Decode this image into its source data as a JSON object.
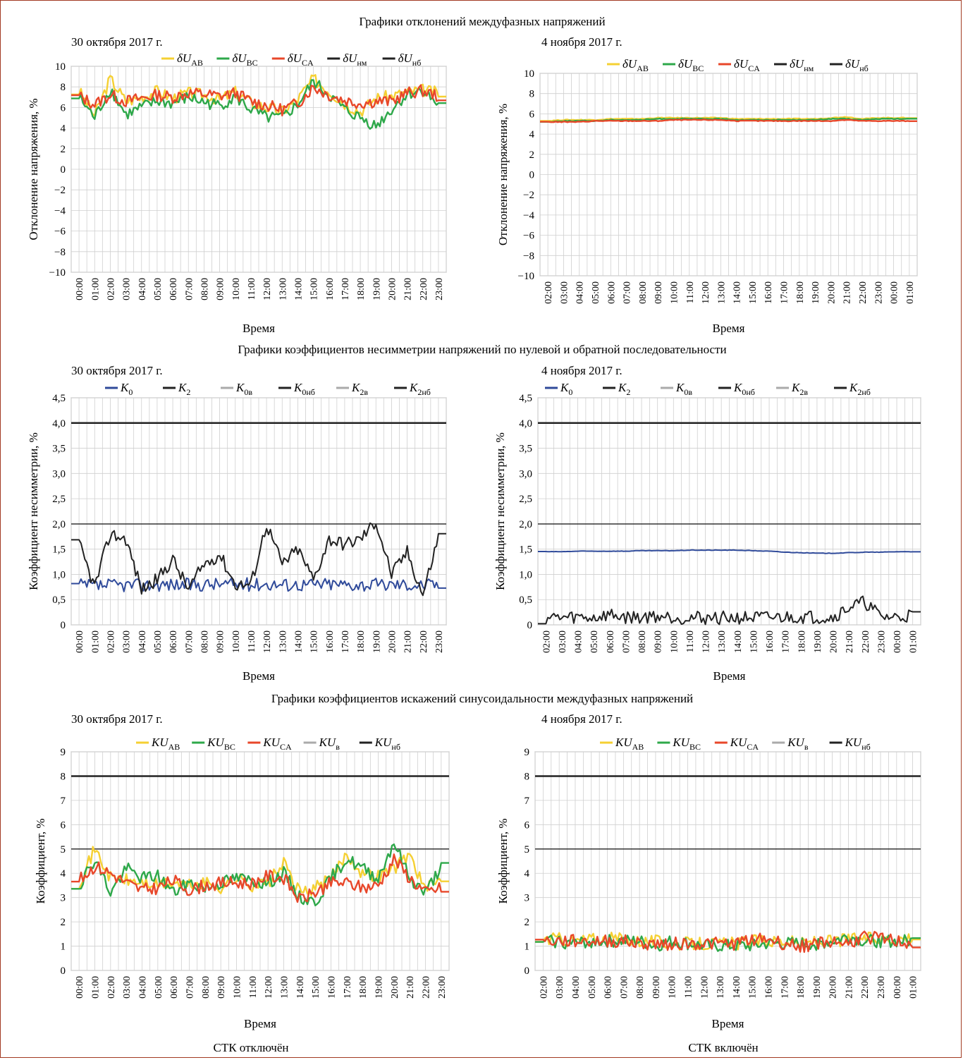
{
  "section_titles": [
    "Графики отклонений междуфазных напряжений",
    "Графики коэффициентов несимметрии напряжений по нулевой и обратной последовательности",
    "Графики коэффициентов искажений синусоидальности междуфазных напряжений"
  ],
  "footer": {
    "left": "СТК отключён",
    "right": "СТК включён"
  },
  "colors": {
    "border": "#a23a22",
    "yellow": "#f5d033",
    "green": "#2ea84a",
    "red": "#e8472a",
    "blue": "#2f4a9a",
    "black": "#222222",
    "gray": "#aaaaaa",
    "grid": "#cfcfcf"
  },
  "chart_data": [
    {
      "id": "dev_oct30",
      "type": "line",
      "date_label": "30 октября 2017 г.",
      "xlabel": "Время",
      "ylabel": "Отклонение напряжения, %",
      "ylim": [
        -10,
        10
      ],
      "yticks": [
        "10",
        "8",
        "6",
        "4",
        "2",
        "0",
        "−2",
        "−4",
        "−6",
        "−8",
        "−10"
      ],
      "categories": [
        "00:00",
        "01:00",
        "02:00",
        "03:00",
        "04:00",
        "05:00",
        "06:00",
        "07:00",
        "08:00",
        "09:00",
        "10:00",
        "11:00",
        "12:00",
        "13:00",
        "14:00",
        "15:00",
        "16:00",
        "17:00",
        "18:00",
        "19:00",
        "20:00",
        "21:00",
        "22:00",
        "23:00"
      ],
      "legend": [
        {
          "name": "δU_AB",
          "main": "δU",
          "sub": "AB",
          "color": "#f5d033"
        },
        {
          "name": "δU_BC",
          "main": "δU",
          "sub": "BC",
          "color": "#2ea84a"
        },
        {
          "name": "δU_CA",
          "main": "δU",
          "sub": "CA",
          "color": "#e8472a"
        },
        {
          "name": "δU_нм",
          "main": "δU",
          "sub": "нм",
          "color": "#222222"
        },
        {
          "name": "δU_нб",
          "main": "δU",
          "sub": "нб",
          "color": "#222222"
        }
      ],
      "series": [
        {
          "name": "δU_AB",
          "color": "#f5d033",
          "values": [
            7.6,
            5.2,
            8.8,
            6.6,
            7.0,
            7.6,
            6.9,
            7.4,
            7.2,
            6.8,
            7.5,
            6.5,
            6.0,
            5.6,
            6.8,
            8.8,
            7.6,
            6.4,
            5.6,
            6.9,
            7.1,
            7.5,
            7.7,
            7.4
          ]
        },
        {
          "name": "δU_BC",
          "color": "#2ea84a",
          "values": [
            7.0,
            5.0,
            7.8,
            5.3,
            6.0,
            6.6,
            6.4,
            7.0,
            6.5,
            6.2,
            7.0,
            5.8,
            5.0,
            5.0,
            6.3,
            8.5,
            7.2,
            5.8,
            5.0,
            4.2,
            5.8,
            7.3,
            7.7,
            6.2
          ]
        },
        {
          "name": "δU_CA",
          "color": "#e8472a",
          "values": [
            7.1,
            6.3,
            7.2,
            6.6,
            6.9,
            7.2,
            7.0,
            7.4,
            7.3,
            7.1,
            7.4,
            6.6,
            6.2,
            5.8,
            6.4,
            8.0,
            7.2,
            6.7,
            6.4,
            6.6,
            6.6,
            7.4,
            7.6,
            7.1
          ]
        }
      ]
    },
    {
      "id": "dev_nov4",
      "type": "line",
      "date_label": "4 ноября 2017 г.",
      "xlabel": "Время",
      "ylabel": "Отклонение напряжения, %",
      "ylim": [
        -10,
        10
      ],
      "yticks": [
        "10",
        "8",
        "6",
        "4",
        "2",
        "0",
        "−2",
        "−4",
        "−6",
        "−8",
        "−10"
      ],
      "categories": [
        "02:00",
        "03:00",
        "04:00",
        "05:00",
        "06:00",
        "07:00",
        "08:00",
        "09:00",
        "10:00",
        "11:00",
        "12:00",
        "13:00",
        "14:00",
        "15:00",
        "16:00",
        "17:00",
        "18:00",
        "19:00",
        "20:00",
        "21:00",
        "22:00",
        "23:00",
        "00:00",
        "01:00"
      ],
      "legend": [
        {
          "name": "δU_AB",
          "main": "δU",
          "sub": "AB",
          "color": "#f5d033"
        },
        {
          "name": "δU_BC",
          "main": "δU",
          "sub": "BC",
          "color": "#2ea84a"
        },
        {
          "name": "δU_CA",
          "main": "δU",
          "sub": "CA",
          "color": "#e8472a"
        },
        {
          "name": "δU_нм",
          "main": "δU",
          "sub": "нм",
          "color": "#222222"
        },
        {
          "name": "δU_нб",
          "main": "δU",
          "sub": "нб",
          "color": "#222222"
        }
      ],
      "series": [
        {
          "name": "δU_AB",
          "color": "#f5d033",
          "values": [
            5.3,
            5.4,
            5.4,
            5.4,
            5.5,
            5.5,
            5.5,
            5.6,
            5.6,
            5.6,
            5.6,
            5.6,
            5.5,
            5.5,
            5.5,
            5.5,
            5.5,
            5.5,
            5.6,
            5.7,
            5.5,
            5.6,
            5.6,
            5.6
          ]
        },
        {
          "name": "δU_BC",
          "color": "#2ea84a",
          "values": [
            5.2,
            5.3,
            5.3,
            5.3,
            5.4,
            5.4,
            5.4,
            5.5,
            5.5,
            5.5,
            5.5,
            5.5,
            5.4,
            5.4,
            5.4,
            5.4,
            5.4,
            5.4,
            5.5,
            5.5,
            5.4,
            5.5,
            5.5,
            5.5
          ]
        },
        {
          "name": "δU_CA",
          "color": "#e8472a",
          "values": [
            5.2,
            5.2,
            5.2,
            5.3,
            5.3,
            5.3,
            5.3,
            5.3,
            5.4,
            5.4,
            5.4,
            5.4,
            5.3,
            5.3,
            5.3,
            5.3,
            5.3,
            5.3,
            5.3,
            5.4,
            5.3,
            5.3,
            5.3,
            5.3
          ]
        }
      ]
    },
    {
      "id": "unb_oct30",
      "type": "line",
      "date_label": "30 октября 2017 г.",
      "xlabel": "Время",
      "ylabel": "Коэффициент несимметрии, %",
      "ylim": [
        0,
        4.5
      ],
      "yticks": [
        "4,5",
        "4,0",
        "3,5",
        "3,0",
        "2,5",
        "2,0",
        "1,5",
        "1,0",
        "0,5",
        "0"
      ],
      "categories": [
        "00:00",
        "01:00",
        "02:00",
        "03:00",
        "04:00",
        "05:00",
        "06:00",
        "07:00",
        "08:00",
        "09:00",
        "10:00",
        "11:00",
        "12:00",
        "13:00",
        "14:00",
        "15:00",
        "16:00",
        "17:00",
        "18:00",
        "19:00",
        "20:00",
        "21:00",
        "22:00",
        "23:00"
      ],
      "legend": [
        {
          "name": "K_0",
          "main": "K",
          "sub": "0",
          "color": "#2f4a9a"
        },
        {
          "name": "K_2",
          "main": "K",
          "sub": "2",
          "color": "#222222"
        },
        {
          "name": "K_0в",
          "main": "K",
          "sub": "0в",
          "color": "#aaaaaa"
        },
        {
          "name": "K_0нб",
          "main": "K",
          "sub": "0нб",
          "color": "#222222"
        },
        {
          "name": "K_2в",
          "main": "K",
          "sub": "2в",
          "color": "#aaaaaa"
        },
        {
          "name": "K_2нб",
          "main": "K",
          "sub": "2нб",
          "color": "#222222"
        }
      ],
      "reference_lines": [
        {
          "name": "K_0нб",
          "value": 4.0,
          "color": "#222222",
          "width": 2.5
        },
        {
          "name": "K_2нб",
          "value": 2.0,
          "color": "#222222",
          "width": 1.4
        }
      ],
      "series": [
        {
          "name": "K_0",
          "color": "#2f4a9a",
          "values": [
            0.78,
            0.77,
            0.78,
            0.79,
            0.78,
            0.8,
            0.8,
            0.79,
            0.8,
            0.81,
            0.8,
            0.8,
            0.81,
            0.8,
            0.8,
            0.8,
            0.81,
            0.8,
            0.8,
            0.79,
            0.8,
            0.8,
            0.79,
            0.8
          ]
        },
        {
          "name": "K_2",
          "color": "#222222",
          "values": [
            1.6,
            0.75,
            1.8,
            1.7,
            0.7,
            0.9,
            1.3,
            0.7,
            1.2,
            1.4,
            0.8,
            0.8,
            2.0,
            1.2,
            1.5,
            0.9,
            1.7,
            1.6,
            1.7,
            2.05,
            1.0,
            1.45,
            0.6,
            1.75
          ]
        }
      ]
    },
    {
      "id": "unb_nov4",
      "type": "line",
      "date_label": "4 ноября 2017 г.",
      "xlabel": "Время",
      "ylabel": "Коэффициент несимметрии, %",
      "ylim": [
        0,
        4.5
      ],
      "yticks": [
        "4,5",
        "4,0",
        "3,5",
        "3,0",
        "2,5",
        "2,0",
        "1,5",
        "1,0",
        "0,5",
        "0"
      ],
      "categories": [
        "02:00",
        "03:00",
        "04:00",
        "05:00",
        "06:00",
        "07:00",
        "08:00",
        "09:00",
        "10:00",
        "11:00",
        "12:00",
        "13:00",
        "14:00",
        "15:00",
        "16:00",
        "17:00",
        "18:00",
        "19:00",
        "20:00",
        "21:00",
        "22:00",
        "23:00",
        "00:00",
        "01:00"
      ],
      "legend": [
        {
          "name": "K_0",
          "main": "K",
          "sub": "0",
          "color": "#2f4a9a"
        },
        {
          "name": "K_2",
          "main": "K",
          "sub": "2",
          "color": "#222222"
        },
        {
          "name": "K_0в",
          "main": "K",
          "sub": "0в",
          "color": "#aaaaaa"
        },
        {
          "name": "K_0нб",
          "main": "K",
          "sub": "0нб",
          "color": "#222222"
        },
        {
          "name": "K_2в",
          "main": "K",
          "sub": "2в",
          "color": "#aaaaaa"
        },
        {
          "name": "K_2нб",
          "main": "K",
          "sub": "2нб",
          "color": "#222222"
        }
      ],
      "reference_lines": [
        {
          "name": "K_0нб",
          "value": 4.0,
          "color": "#222222",
          "width": 2.5
        },
        {
          "name": "K_2нб",
          "value": 2.0,
          "color": "#222222",
          "width": 1.4
        }
      ],
      "series": [
        {
          "name": "K_0",
          "color": "#2f4a9a",
          "values": [
            1.45,
            1.45,
            1.46,
            1.46,
            1.46,
            1.46,
            1.47,
            1.47,
            1.47,
            1.48,
            1.48,
            1.48,
            1.48,
            1.47,
            1.46,
            1.44,
            1.43,
            1.42,
            1.42,
            1.43,
            1.44,
            1.44,
            1.45,
            1.45
          ]
        },
        {
          "name": "K_2",
          "color": "#222222",
          "values": [
            0.15,
            0.14,
            0.15,
            0.14,
            0.2,
            0.15,
            0.15,
            0.18,
            0.15,
            0.14,
            0.14,
            0.14,
            0.14,
            0.14,
            0.14,
            0.15,
            0.16,
            0.15,
            0.15,
            0.35,
            0.45,
            0.16,
            0.15,
            0.2
          ]
        }
      ]
    },
    {
      "id": "thd_oct30",
      "type": "line",
      "date_label": "30 октября 2017 г.",
      "xlabel": "Время",
      "ylabel": "Коэффициент, %",
      "ylim": [
        0,
        9
      ],
      "yticks": [
        "9",
        "8",
        "7",
        "6",
        "5",
        "4",
        "3",
        "2",
        "1",
        "0"
      ],
      "categories": [
        "00:00",
        "01:00",
        "02:00",
        "03:00",
        "04:00",
        "05:00",
        "06:00",
        "07:00",
        "08:00",
        "09:00",
        "10:00",
        "11:00",
        "12:00",
        "13:00",
        "14:00",
        "15:00",
        "16:00",
        "17:00",
        "18:00",
        "19:00",
        "20:00",
        "21:00",
        "22:00",
        "23:00"
      ],
      "legend": [
        {
          "name": "KU_AB",
          "main": "KU",
          "sub": "AB",
          "color": "#f5d033"
        },
        {
          "name": "KU_BC",
          "main": "KU",
          "sub": "BC",
          "color": "#2ea84a"
        },
        {
          "name": "KU_CA",
          "main": "KU",
          "sub": "CA",
          "color": "#e8472a"
        },
        {
          "name": "KU_в",
          "main": "KU",
          "sub": "в",
          "color": "#aaaaaa"
        },
        {
          "name": "KU_нб",
          "main": "KU",
          "sub": "нб",
          "color": "#222222"
        }
      ],
      "reference_lines": [
        {
          "name": "KU_нб",
          "value": 8.0,
          "color": "#222222",
          "width": 2.5
        },
        {
          "name": "KU_в",
          "value": 5.0,
          "color": "#222222",
          "width": 1.4
        }
      ],
      "series": [
        {
          "name": "KU_AB",
          "color": "#f5d033",
          "values": [
            3.6,
            5.0,
            3.8,
            3.7,
            3.6,
            3.5,
            3.6,
            3.5,
            3.6,
            3.4,
            3.8,
            3.5,
            3.6,
            4.4,
            3.2,
            3.4,
            3.8,
            4.8,
            4.0,
            3.9,
            4.2,
            4.8,
            3.3,
            3.8
          ]
        },
        {
          "name": "KU_BC",
          "color": "#2ea84a",
          "values": [
            3.5,
            4.6,
            3.2,
            4.2,
            3.8,
            3.9,
            3.2,
            3.6,
            3.4,
            3.6,
            3.8,
            3.7,
            3.6,
            4.0,
            3.0,
            2.8,
            3.8,
            4.6,
            4.2,
            3.8,
            5.3,
            3.8,
            3.2,
            4.3
          ]
        },
        {
          "name": "KU_CA",
          "color": "#e8472a",
          "values": [
            3.7,
            4.3,
            4.0,
            3.6,
            3.3,
            3.4,
            3.7,
            3.3,
            3.5,
            3.6,
            3.6,
            3.6,
            3.9,
            3.8,
            2.9,
            3.2,
            3.6,
            3.6,
            3.4,
            3.5,
            4.6,
            3.8,
            3.2,
            3.4
          ]
        }
      ]
    },
    {
      "id": "thd_nov4",
      "type": "line",
      "date_label": "4 ноября 2017 г.",
      "xlabel": "Время",
      "ylabel": "Коэффициент, %",
      "ylim": [
        0,
        9
      ],
      "yticks": [
        "9",
        "8",
        "7",
        "6",
        "5",
        "4",
        "3",
        "2",
        "1",
        "0"
      ],
      "categories": [
        "02:00",
        "03:00",
        "04:00",
        "05:00",
        "06:00",
        "07:00",
        "08:00",
        "09:00",
        "10:00",
        "11:00",
        "12:00",
        "13:00",
        "14:00",
        "15:00",
        "16:00",
        "17:00",
        "18:00",
        "19:00",
        "20:00",
        "21:00",
        "22:00",
        "23:00",
        "00:00",
        "01:00"
      ],
      "legend": [
        {
          "name": "KU_AB",
          "main": "KU",
          "sub": "AB",
          "color": "#f5d033"
        },
        {
          "name": "KU_BC",
          "main": "KU",
          "sub": "BC",
          "color": "#2ea84a"
        },
        {
          "name": "KU_CA",
          "main": "KU",
          "sub": "CA",
          "color": "#e8472a"
        },
        {
          "name": "KU_в",
          "main": "KU",
          "sub": "в",
          "color": "#aaaaaa"
        },
        {
          "name": "KU_нб",
          "main": "KU",
          "sub": "нб",
          "color": "#222222"
        }
      ],
      "reference_lines": [
        {
          "name": "KU_нб",
          "value": 8.0,
          "color": "#222222",
          "width": 2.5
        },
        {
          "name": "KU_в",
          "value": 5.0,
          "color": "#222222",
          "width": 1.4
        }
      ],
      "series": [
        {
          "name": "KU_AB",
          "color": "#f5d033",
          "values": [
            1.3,
            1.3,
            1.2,
            1.3,
            1.3,
            1.3,
            1.2,
            1.2,
            1.1,
            1.1,
            1.1,
            1.1,
            1.1,
            1.2,
            1.2,
            1.2,
            1.1,
            1.2,
            1.2,
            1.3,
            1.3,
            1.3,
            1.3,
            1.4
          ]
        },
        {
          "name": "KU_BC",
          "color": "#2ea84a",
          "values": [
            1.2,
            1.2,
            1.1,
            1.2,
            1.2,
            1.2,
            1.2,
            1.0,
            1.2,
            1.1,
            1.0,
            1.0,
            1.0,
            1.0,
            1.1,
            1.1,
            1.1,
            1.1,
            1.2,
            1.4,
            1.2,
            1.2,
            1.2,
            1.2
          ]
        },
        {
          "name": "KU_CA",
          "color": "#e8472a",
          "values": [
            1.2,
            1.2,
            1.2,
            1.2,
            1.2,
            1.2,
            1.1,
            1.1,
            1.1,
            1.1,
            1.1,
            1.1,
            1.1,
            1.3,
            1.3,
            1.1,
            1.0,
            1.1,
            1.2,
            1.1,
            1.4,
            1.3,
            1.2,
            1.1
          ]
        }
      ]
    }
  ]
}
